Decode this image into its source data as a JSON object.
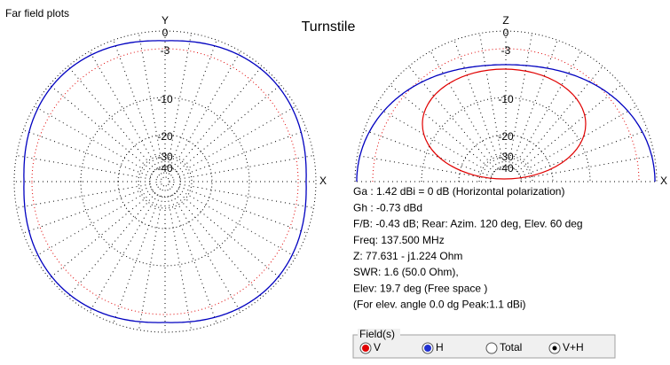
{
  "window_title": "Far field plots",
  "title": "Turnstile",
  "horizontal_plot": {
    "axis_top": "Y",
    "axis_right": "X",
    "ring_labels": [
      "0",
      "-3",
      "-10",
      "-20",
      "-30",
      "-40"
    ]
  },
  "vertical_plot": {
    "axis_top": "Z",
    "axis_right": "X",
    "ring_labels": [
      "0",
      "-3",
      "-10",
      "-20",
      "-30",
      "-40"
    ]
  },
  "info": [
    "Ga : 1.42 dBi = 0 dB  (Horizontal polarization)",
    "Gh : -0.73 dBd",
    "F/B: -0.43 dB; Rear: Azim. 120 deg,  Elev. 60 deg",
    "Freq: 137.500 MHz",
    "Z: 77.631 - j1.224 Ohm",
    "SWR: 1.6 (50.0 Ohm),",
    "Elev: 19.7 deg (Free space )",
    "(For elev. angle 0.0 dg Peak:1.1 dBi)"
  ],
  "fields": {
    "legend": "Field(s)",
    "options": [
      "V",
      "H",
      "Total",
      "V+H"
    ]
  }
}
